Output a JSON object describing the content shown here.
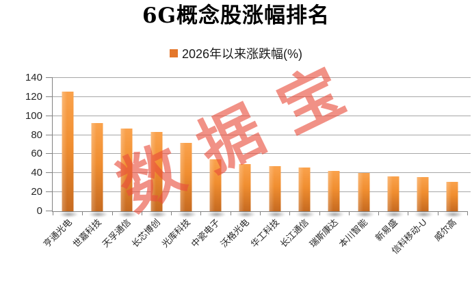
{
  "chart_data": {
    "type": "bar",
    "title": "6G概念股涨幅排名",
    "legend": {
      "label": "2026年以来涨跌幅(%)",
      "position": "top"
    },
    "watermark": "数据宝",
    "categories": [
      "亨通光电",
      "世嘉科技",
      "天孚通信",
      "长芯博创",
      "光库科技",
      "中瓷电子",
      "沃格光电",
      "华工科技",
      "长江通信",
      "瑞斯康达",
      "本川智能",
      "新易盛",
      "信科移动-U",
      "威尔高"
    ],
    "values": [
      125.4,
      92.7,
      87.1,
      83.2,
      71.7,
      54.4,
      49.5,
      47.6,
      46.3,
      42.4,
      39.9,
      36.7,
      35.9,
      31.2
    ],
    "xlabel": "",
    "ylabel": "",
    "ylim": [
      0,
      140
    ],
    "yticks": [
      0,
      20,
      40,
      60,
      80,
      100,
      120,
      140
    ],
    "grid": true,
    "colors": {
      "title": "#000000",
      "legend_swatch": "#e4772b",
      "bar_top": "#faa24c",
      "bar_mid": "#f08e30",
      "bar_bottom": "#c66a20",
      "gridline": "#a6a6a6",
      "axis": "#808080",
      "tick_label": "#262626",
      "watermark": "rgba(233,77,60,0.62)"
    }
  }
}
